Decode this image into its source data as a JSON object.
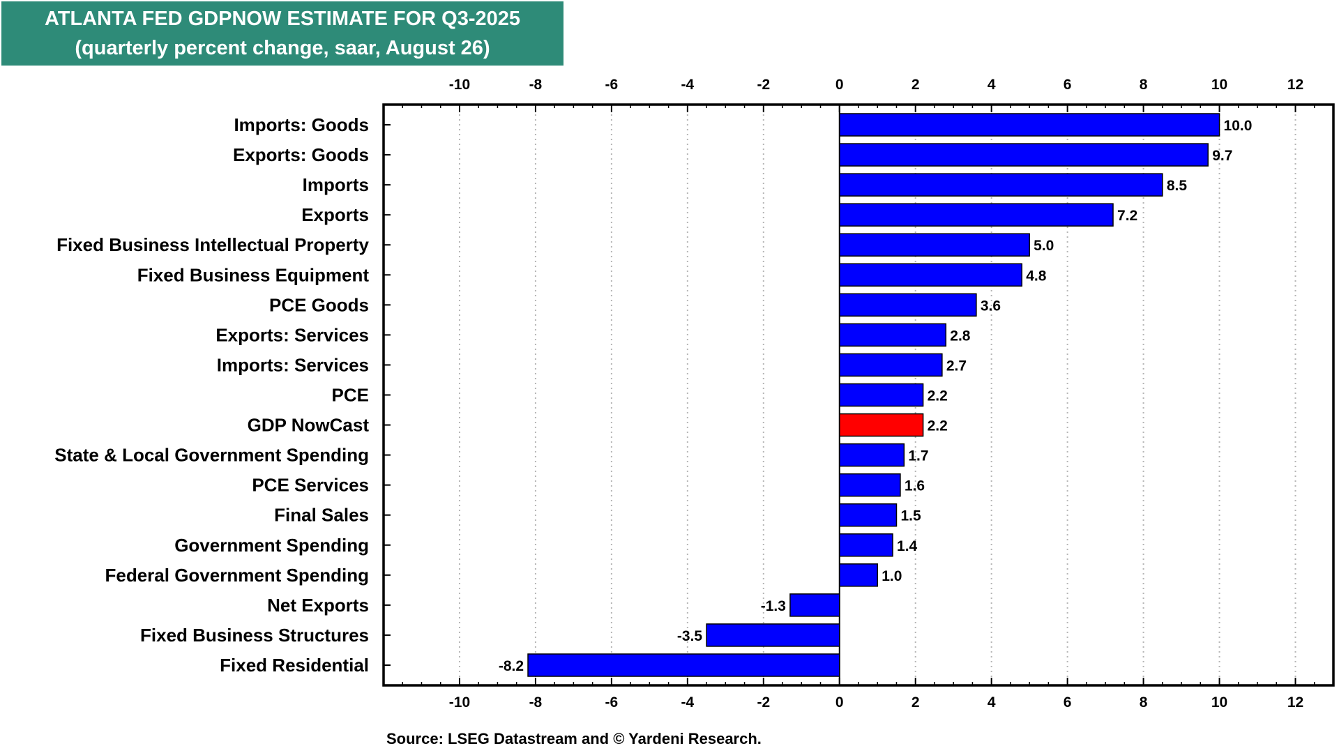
{
  "header": {
    "title_line1": "ATLANTA FED GDPNOW ESTIMATE FOR Q3-2025",
    "title_line2": "(quarterly percent change, saar, August 26)"
  },
  "footer": {
    "source": "Source: LSEG Datastream and © Yardeni Research."
  },
  "colors": {
    "title_bg": "#2e8b78",
    "bar": "#0000ff",
    "highlight_bar": "#ff0000"
  },
  "chart_data": {
    "type": "bar",
    "orientation": "horizontal",
    "title": "ATLANTA FED GDPNOW ESTIMATE FOR Q3-2025",
    "subtitle": "(quarterly percent change, saar, August 26)",
    "xlim": [
      -12,
      13
    ],
    "xticks": [
      -10,
      -8,
      -6,
      -4,
      -2,
      0,
      2,
      4,
      6,
      8,
      10,
      12
    ],
    "grid": "vertical dotted",
    "highlight": "GDP NowCast",
    "categories": [
      "Imports: Goods",
      "Exports: Goods",
      "Imports",
      "Exports",
      "Fixed Business Intellectual Property",
      "Fixed Business Equipment",
      "PCE Goods",
      "Exports: Services",
      "Imports: Services",
      "PCE",
      "GDP NowCast",
      "State & Local Government Spending",
      "PCE Services",
      "Final Sales",
      "Government Spending",
      "Federal Government Spending",
      "Net Exports",
      "Fixed Business Structures",
      "Fixed Residential"
    ],
    "values": [
      10.0,
      9.7,
      8.5,
      7.2,
      5.0,
      4.8,
      3.6,
      2.8,
      2.7,
      2.2,
      2.2,
      1.7,
      1.6,
      1.5,
      1.4,
      1.0,
      -1.3,
      -3.5,
      -8.2
    ],
    "value_labels": [
      "10.0",
      "9.7",
      "8.5",
      "7.2",
      "5.0",
      "4.8",
      "3.6",
      "2.8",
      "2.7",
      "2.2",
      "2.2",
      "1.7",
      "1.6",
      "1.5",
      "1.4",
      "1.0",
      "-1.3",
      "-3.5",
      "-8.2"
    ]
  }
}
